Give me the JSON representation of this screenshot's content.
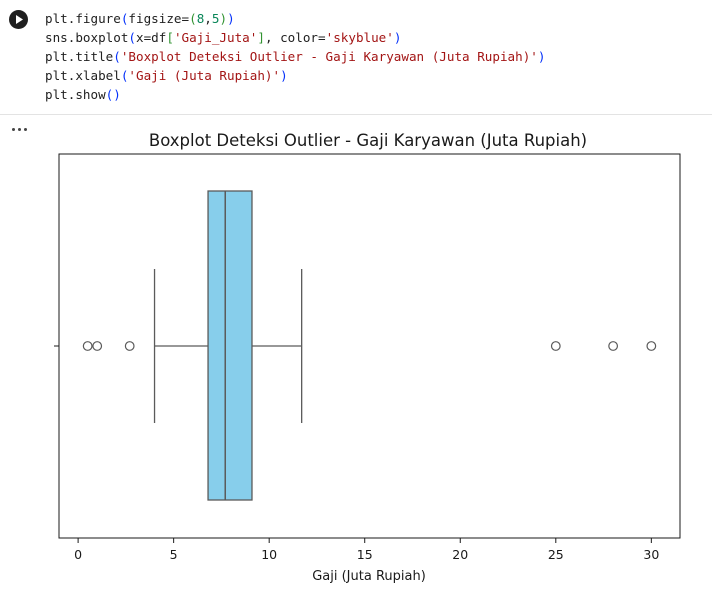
{
  "cell": {
    "code_lines": [
      [
        [
          "plt.figure",
          ""
        ],
        [
          "(",
          "paren"
        ],
        [
          "figsize=",
          ""
        ],
        [
          "(",
          "brk"
        ],
        [
          "8",
          "num"
        ],
        [
          ",",
          ""
        ],
        [
          "5",
          "num"
        ],
        [
          ")",
          "brk"
        ],
        [
          ")",
          "paren"
        ]
      ],
      [
        [
          "sns.boxplot",
          ""
        ],
        [
          "(",
          "paren"
        ],
        [
          "x=df",
          ""
        ],
        [
          "[",
          "brk"
        ],
        [
          "'Gaji_Juta'",
          "str"
        ],
        [
          "]",
          "brk"
        ],
        [
          ", color=",
          ""
        ],
        [
          "'skyblue'",
          "str"
        ],
        [
          ")",
          "paren"
        ]
      ],
      [
        [
          "plt.title",
          ""
        ],
        [
          "(",
          "paren"
        ],
        [
          "'Boxplot Deteksi Outlier - Gaji Karyawan (Juta Rupiah)'",
          "str"
        ],
        [
          ")",
          "paren"
        ]
      ],
      [
        [
          "plt.xlabel",
          ""
        ],
        [
          "(",
          "paren"
        ],
        [
          "'Gaji (Juta Rupiah)'",
          "str"
        ],
        [
          ")",
          "paren"
        ]
      ],
      [
        [
          "plt.show",
          ""
        ],
        [
          "()",
          "paren"
        ]
      ]
    ],
    "run_icon": "play-icon",
    "output_menu_icon": "more-horiz-icon"
  },
  "chart_data": {
    "type": "boxplot",
    "title": "Boxplot Deteksi Outlier - Gaji Karyawan (Juta Rupiah)",
    "xlabel": "Gaji (Juta Rupiah)",
    "ylabel": "",
    "xlim": [
      -1,
      31.5
    ],
    "xticks": [
      0,
      5,
      10,
      15,
      20,
      25,
      30
    ],
    "orientation": "horizontal",
    "box": {
      "whisker_low": 4.0,
      "q1": 6.8,
      "median": 7.7,
      "q3": 9.1,
      "whisker_high": 11.7
    },
    "outliers": [
      0.5,
      1.0,
      2.7,
      25.0,
      28.0,
      30.0
    ],
    "color": "#87ceeb",
    "grid": false
  }
}
